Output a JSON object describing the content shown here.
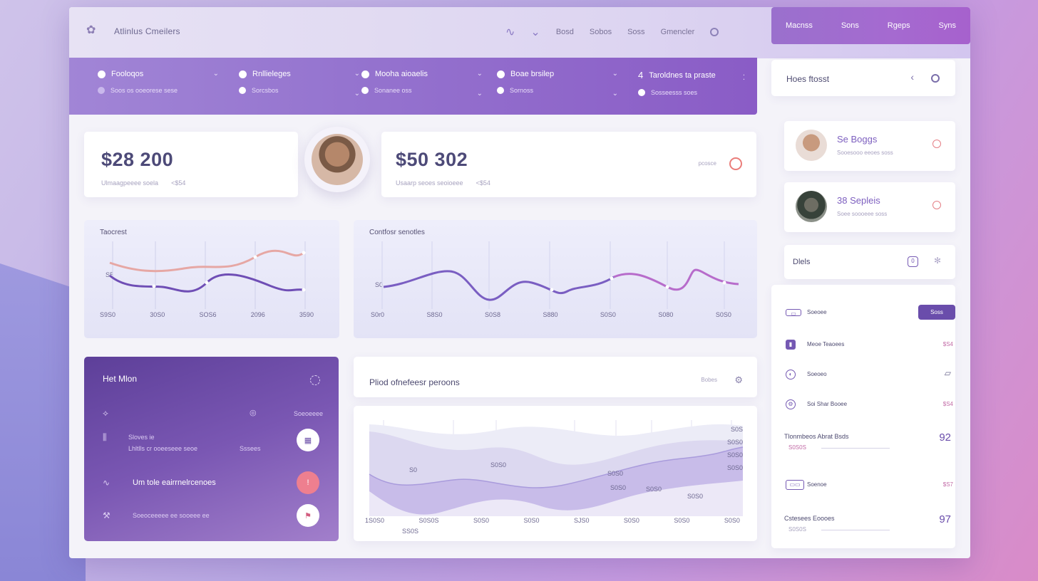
{
  "app": {
    "title": "Atlinlus Cmeilers"
  },
  "top_nav": [
    "Bosd",
    "Sobos",
    "Soss",
    "Gmencler"
  ],
  "menu": [
    "Macnss",
    "Sons",
    "Rgeps",
    "Syns"
  ],
  "filters": [
    {
      "label": "Fooloqos",
      "sub": "Soos os ooeorese sese"
    },
    {
      "label": "Rnllieleges",
      "sub": "Sorcsbos"
    },
    {
      "label": "Mooha aioaelis",
      "sub": "Sonanee oss"
    },
    {
      "label": "Boae brsilep",
      "sub": "Sornoss"
    },
    {
      "label": "Taroldnes ta praste",
      "sub": "Sosseesss soes"
    }
  ],
  "kpis": [
    {
      "value": "$28 200",
      "sub": "Ulmaagpeeee soela",
      "sub2": "<$54"
    },
    {
      "value": "$50 302",
      "sub": "Usaarp seoes seoioeee",
      "sub2": "<$54",
      "tag": "pcosce"
    }
  ],
  "chart1": {
    "title": "Taocrest",
    "ticks": [
      "S9S0",
      "30S0",
      "SOS6",
      "2096",
      "3590"
    ],
    "marker": "S5"
  },
  "chart2": {
    "title": "Contfosr senotles",
    "ticks": [
      "S0r0",
      "S8S0",
      "S0S8",
      "S880",
      "S0S0",
      "S080",
      "S0S0"
    ],
    "marker": "S0"
  },
  "hot_card": {
    "title": "Het Mlon",
    "rows": [
      "Sloves ie",
      "Lhltlls cr ooeeseee seoe",
      "Um tole eairrnelrcenoes",
      "Soeoceeeee ee sooeee ee"
    ],
    "right": "Soeoeeee",
    "r2": "Sssees"
  },
  "area_chart": {
    "title": "Pliod ofnefeesr peroons",
    "tag": "Bobes",
    "x_ticks": [
      "1S0S0",
      "S0S0S",
      "S0S0",
      "S0S0",
      "SJS0",
      "S0S0",
      "S0S0",
      "S0S0",
      "S0S07"
    ],
    "sub_tick": "SS0S",
    "y_ticks": [
      "S0S",
      "S0S0",
      "S0S0",
      "S0S0",
      "S0S0"
    ],
    "inner_labels": [
      "S0",
      "S0S0",
      "S0S0",
      "S0S0",
      "S0S0",
      "S0S0"
    ]
  },
  "right_panel": {
    "header": "Hoes ftosst",
    "profiles": [
      {
        "name": "Se Boggs",
        "sub": "Sooesooo eeoes soss"
      },
      {
        "name": "38 Sepleis",
        "sub": "Soee soooeee soss"
      }
    ],
    "section": "Dlels",
    "items": [
      {
        "label": "Soeoee",
        "button": "Soss"
      },
      {
        "label": "Meoe Teaoees",
        "value": "$S4"
      },
      {
        "label": "Soeoeo",
        "value": ""
      },
      {
        "label": "Soi Shar Booee",
        "value": "$S4"
      },
      {
        "label": "Tlonmbeos Abrat Bsds",
        "value": "92",
        "sub": "S0S0S"
      },
      {
        "label": "Soenoe",
        "value": "$S7"
      },
      {
        "label": "Cstesees Eoooes",
        "value": "97",
        "sub": "S0S0S"
      }
    ]
  }
}
